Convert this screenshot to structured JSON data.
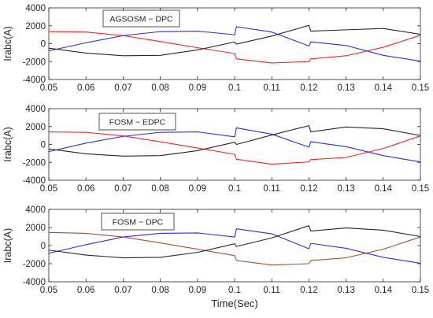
{
  "chart_data": [
    {
      "type": "line",
      "annotation": "AGSOSM − DPC",
      "ylabel": "Irabc(A)",
      "xlabel": "",
      "xlim": [
        0.05,
        0.15
      ],
      "ylim": [
        -4000,
        4000
      ],
      "xticks": [
        0.05,
        0.06,
        0.07,
        0.08,
        0.09,
        0.1,
        0.11,
        0.12,
        0.13,
        0.14,
        0.15
      ],
      "xtick_labels": [
        "0.05",
        "0.06",
        "0.07",
        "0.08",
        "0.09",
        "0.1",
        "0.11",
        "0.12",
        "0.13",
        "0.14",
        "0.15"
      ],
      "yticks": [
        -4000,
        -2000,
        0,
        2000,
        4000
      ],
      "ytick_labels": [
        "-4000",
        "-2000",
        "0",
        "2000",
        "4000"
      ],
      "grid": false,
      "x": [
        0.05,
        0.06,
        0.07,
        0.08,
        0.09,
        0.1,
        0.1005,
        0.11,
        0.12,
        0.1205,
        0.13,
        0.14,
        0.15
      ],
      "series": [
        {
          "color": "#ff2020",
          "values": [
            1350,
            1300,
            900,
            250,
            -450,
            -1100,
            -1700,
            -2150,
            -2000,
            -1700,
            -1350,
            -400,
            950
          ]
        },
        {
          "color": "#2a2aee",
          "values": [
            -800,
            100,
            900,
            1350,
            1400,
            1000,
            1900,
            1300,
            -250,
            200,
            -200,
            -1300,
            -1950
          ]
        },
        {
          "color": "#262626",
          "values": [
            -500,
            -1050,
            -1350,
            -1300,
            -700,
            200,
            -50,
            850,
            2050,
            1400,
            1550,
            1700,
            1050
          ]
        }
      ]
    },
    {
      "type": "line",
      "annotation": "FOSM − EDPC",
      "ylabel": "Irabc(A)",
      "xlabel": "",
      "xlim": [
        0.05,
        0.15
      ],
      "ylim": [
        -4000,
        4000
      ],
      "xticks": [
        0.05,
        0.06,
        0.07,
        0.08,
        0.09,
        0.1,
        0.11,
        0.12,
        0.13,
        0.14,
        0.15
      ],
      "xtick_labels": [
        "0.05",
        "0.06",
        "0.07",
        "0.08",
        "0.09",
        "0.1",
        "0.11",
        "0.12",
        "0.13",
        "0.14",
        "0.15"
      ],
      "yticks": [
        -4000,
        -2000,
        0,
        2000,
        4000
      ],
      "ytick_labels": [
        "-4000",
        "-2000",
        "0",
        "2000",
        "4000"
      ],
      "grid": false,
      "x": [
        0.05,
        0.06,
        0.07,
        0.08,
        0.09,
        0.1,
        0.1005,
        0.11,
        0.12,
        0.1205,
        0.13,
        0.14,
        0.15
      ],
      "series": [
        {
          "color": "#ff2020",
          "values": [
            1400,
            1350,
            950,
            300,
            -400,
            -1100,
            -1650,
            -2200,
            -1950,
            -1700,
            -1450,
            -450,
            950
          ]
        },
        {
          "color": "#2a2aee",
          "values": [
            -800,
            150,
            900,
            1350,
            1400,
            850,
            1850,
            1150,
            -300,
            300,
            -250,
            -1250,
            -1950
          ]
        },
        {
          "color": "#262626",
          "values": [
            -500,
            -1050,
            -1300,
            -1250,
            -700,
            250,
            0,
            1050,
            2100,
            1400,
            1950,
            1750,
            1000
          ]
        }
      ]
    },
    {
      "type": "line",
      "annotation": "FOSM − DPC",
      "ylabel": "Irabc(A)",
      "xlabel": "Time(Sec)",
      "xlim": [
        0.05,
        0.15
      ],
      "ylim": [
        -4000,
        4000
      ],
      "xticks": [
        0.05,
        0.06,
        0.07,
        0.08,
        0.09,
        0.1,
        0.11,
        0.12,
        0.13,
        0.14,
        0.15
      ],
      "xtick_labels": [
        "0.05",
        "0.06",
        "0.07",
        "0.08",
        "0.09",
        "0.1",
        "0.11",
        "0.12",
        "0.13",
        "0.14",
        "0.15"
      ],
      "yticks": [
        -4000,
        -2000,
        0,
        2000,
        4000
      ],
      "ytick_labels": [
        "-4000",
        "-2000",
        "0",
        "2000",
        "4000"
      ],
      "grid": false,
      "x": [
        0.05,
        0.06,
        0.07,
        0.08,
        0.09,
        0.1,
        0.1005,
        0.11,
        0.12,
        0.1205,
        0.13,
        0.14,
        0.15
      ],
      "series": [
        {
          "color": "#a0522d",
          "values": [
            1450,
            1350,
            950,
            300,
            -400,
            -1100,
            -1650,
            -2150,
            -2000,
            -1650,
            -1350,
            -400,
            950
          ]
        },
        {
          "color": "#2a2aee",
          "values": [
            -850,
            100,
            950,
            1350,
            1400,
            950,
            1850,
            1300,
            -350,
            250,
            -300,
            -1300,
            -1950
          ]
        },
        {
          "color": "#262626",
          "values": [
            -500,
            -1050,
            -1350,
            -1300,
            -750,
            200,
            -100,
            850,
            2200,
            1600,
            1950,
            1700,
            1000
          ]
        }
      ]
    }
  ]
}
